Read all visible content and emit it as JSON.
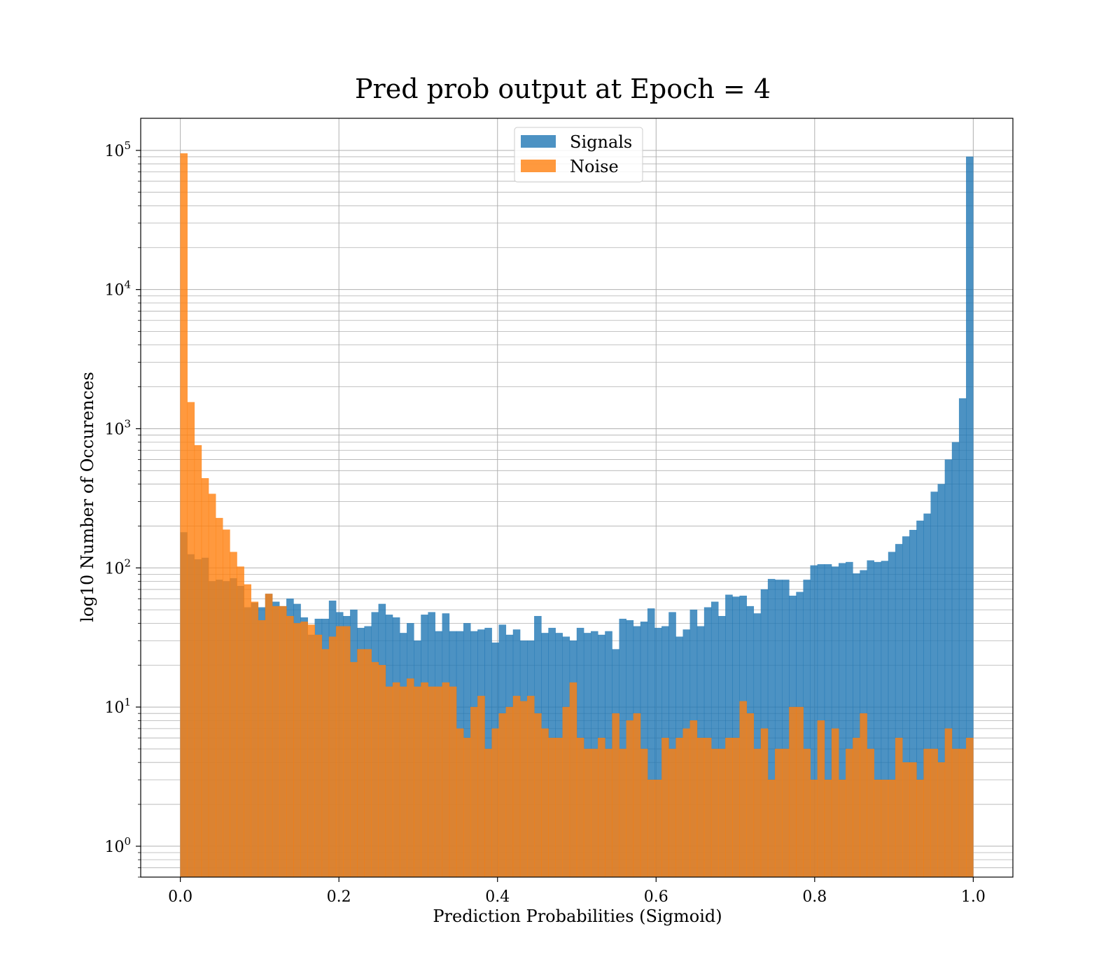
{
  "chart_data": {
    "type": "bar",
    "title": "Pred prob output at Epoch = 4",
    "xlabel": "Prediction Probabilities (Sigmoid)",
    "ylabel": "log10 Number of Occurences",
    "yscale": "log",
    "xlim": [
      -0.05,
      1.05
    ],
    "ylim": [
      0.6,
      170000
    ],
    "grid": true,
    "legend_position": "top-center",
    "x_ticks": [
      0.0,
      0.2,
      0.4,
      0.6,
      0.8,
      1.0
    ],
    "x_tick_labels": [
      "0.0",
      "0.2",
      "0.4",
      "0.6",
      "0.8",
      "1.0"
    ],
    "y_tick_exponents": [
      0,
      1,
      2,
      3,
      4,
      5
    ],
    "y_tick_base": "10",
    "bin_start": 0.0,
    "bin_end": 1.0,
    "series": [
      {
        "name": "Signals",
        "color": "#1f77b4",
        "values": [
          180,
          125,
          115,
          118,
          80,
          82,
          80,
          84,
          74,
          52,
          56,
          52,
          65,
          57,
          53,
          60,
          55,
          44,
          33,
          43,
          43,
          58,
          48,
          45,
          50,
          37,
          38,
          48,
          55,
          46,
          44,
          34,
          40,
          30,
          46,
          48,
          35,
          47,
          35,
          35,
          40,
          35,
          36,
          37,
          29,
          39,
          33,
          36,
          30,
          30,
          45,
          34,
          37,
          34,
          32,
          30,
          37,
          34,
          35,
          33,
          35,
          26,
          43,
          42,
          38,
          41,
          51,
          37,
          38,
          48,
          32,
          36,
          50,
          38,
          52,
          57,
          45,
          64,
          62,
          63,
          53,
          47,
          70,
          83,
          82,
          82,
          63,
          67,
          82,
          104,
          106,
          106,
          102,
          108,
          110,
          91,
          96,
          113,
          110,
          112,
          130,
          148,
          168,
          187,
          218,
          245,
          352,
          400,
          600,
          800,
          1650,
          90000
        ]
      },
      {
        "name": "Noise",
        "color": "#ff7f0e",
        "values": [
          95000,
          1550,
          760,
          440,
          340,
          228,
          188,
          130,
          102,
          76,
          57,
          42,
          65,
          53,
          53,
          45,
          40,
          41,
          39,
          33,
          26,
          32,
          38,
          38,
          21,
          26,
          26,
          21,
          20,
          14,
          15,
          14,
          16,
          14,
          15,
          14,
          14,
          15,
          14,
          7,
          6,
          10,
          12,
          5,
          7,
          9,
          10,
          12,
          11,
          12,
          9,
          7,
          6,
          6,
          10,
          15,
          6,
          5,
          5,
          6,
          5,
          9,
          5,
          8,
          9,
          5,
          3,
          3,
          6,
          5,
          6,
          7,
          8,
          6,
          6,
          5,
          5,
          6,
          6,
          11,
          9,
          5,
          7,
          3,
          5,
          5,
          10,
          10,
          5,
          3,
          8,
          3,
          7,
          3,
          5,
          6,
          9,
          5,
          3,
          3,
          3,
          6,
          4,
          4,
          3,
          5,
          5,
          4,
          7,
          5,
          5,
          6
        ]
      }
    ]
  }
}
